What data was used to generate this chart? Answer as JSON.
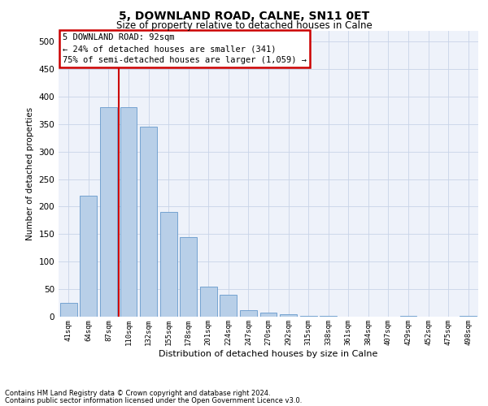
{
  "title": "5, DOWNLAND ROAD, CALNE, SN11 0ET",
  "subtitle": "Size of property relative to detached houses in Calne",
  "xlabel": "Distribution of detached houses by size in Calne",
  "ylabel": "Number of detached properties",
  "footnote1": "Contains HM Land Registry data © Crown copyright and database right 2024.",
  "footnote2": "Contains public sector information licensed under the Open Government Licence v3.0.",
  "bar_labels": [
    "41sqm",
    "64sqm",
    "87sqm",
    "110sqm",
    "132sqm",
    "155sqm",
    "178sqm",
    "201sqm",
    "224sqm",
    "247sqm",
    "270sqm",
    "292sqm",
    "315sqm",
    "338sqm",
    "361sqm",
    "384sqm",
    "407sqm",
    "429sqm",
    "452sqm",
    "475sqm",
    "498sqm"
  ],
  "bar_values": [
    25,
    220,
    380,
    380,
    345,
    190,
    145,
    55,
    40,
    12,
    8,
    5,
    2,
    1,
    0,
    0,
    0,
    1,
    0,
    0,
    2
  ],
  "bar_color": "#b8cfe8",
  "bar_edge_color": "#6699cc",
  "ylim": [
    0,
    520
  ],
  "yticks": [
    0,
    50,
    100,
    150,
    200,
    250,
    300,
    350,
    400,
    450,
    500
  ],
  "red_line_x": 2.5,
  "annotation_title": "5 DOWNLAND ROAD: 92sqm",
  "annotation_line1": "← 24% of detached houses are smaller (341)",
  "annotation_line2": "75% of semi-detached houses are larger (1,059) →",
  "annotation_box_color": "#ffffff",
  "annotation_border_color": "#cc0000",
  "background_color": "#eef2fa",
  "grid_color": "#c8d4e8",
  "title_fontsize": 10,
  "subtitle_fontsize": 8.5
}
